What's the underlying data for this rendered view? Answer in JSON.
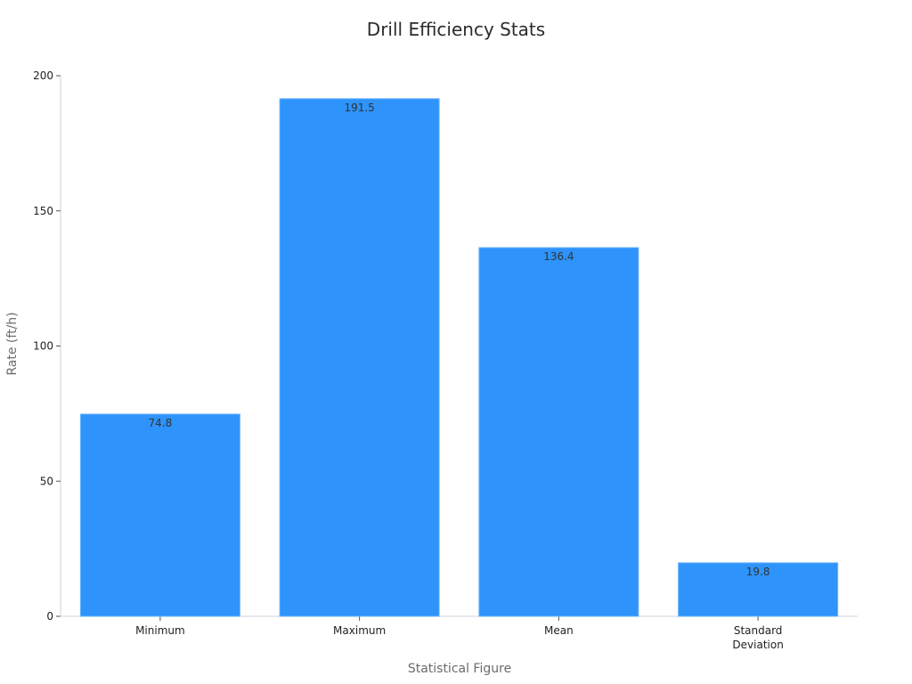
{
  "chart_data": {
    "type": "bar",
    "title": "Drill Efficiency Stats",
    "xlabel": "Statistical Figure",
    "ylabel": "Rate (ft/h)",
    "categories": [
      "Minimum",
      "Maximum",
      "Mean",
      "Standard Deviation"
    ],
    "category_lines": [
      [
        "Minimum"
      ],
      [
        "Maximum"
      ],
      [
        "Mean"
      ],
      [
        "Standard",
        "Deviation"
      ]
    ],
    "values": [
      74.8,
      191.5,
      136.4,
      19.8
    ],
    "data_labels": [
      "74.8",
      "191.5",
      "136.4",
      "19.8"
    ],
    "ylim": [
      0,
      200
    ],
    "yticks": [
      0,
      50,
      100,
      150,
      200
    ],
    "ytick_labels": [
      "0",
      "50",
      "100",
      "150",
      "200"
    ],
    "grid": false,
    "legend": "none",
    "bar_color": "#2e93fa"
  }
}
